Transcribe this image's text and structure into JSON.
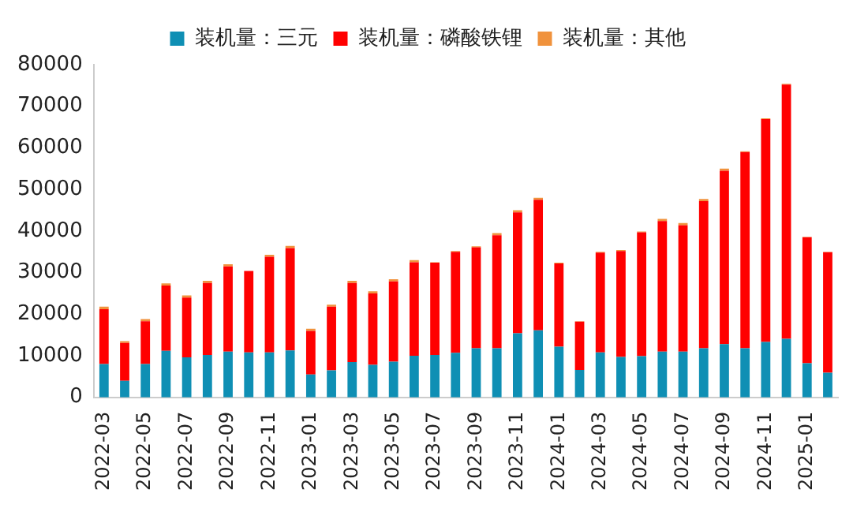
{
  "chart_data": {
    "type": "bar",
    "stacked": true,
    "legend": "top",
    "grid": false,
    "categories": [
      "2022-03",
      null,
      "2022-05",
      null,
      "2022-07",
      null,
      "2022-09",
      null,
      "2022-11",
      null,
      "2023-01",
      null,
      "2023-03",
      null,
      "2023-05",
      null,
      "2023-07",
      null,
      "2023-09",
      null,
      "2023-11",
      null,
      "2024-01",
      null,
      "2024-03",
      null,
      "2024-05",
      null,
      "2024-07",
      null,
      "2024-09",
      null,
      "2024-11",
      null,
      "2025-01",
      null
    ],
    "ylim": [
      0,
      80000
    ],
    "yticks": [
      0,
      10000,
      20000,
      30000,
      40000,
      50000,
      60000,
      70000,
      80000
    ],
    "series": [
      {
        "name": "装机量：三元",
        "color": "#0f8fb4",
        "values": [
          8000,
          4000,
          8000,
          11200,
          9600,
          10200,
          11000,
          10800,
          10800,
          11300,
          5500,
          6500,
          8500,
          7800,
          8600,
          10000,
          10200,
          10700,
          11800,
          11800,
          15400,
          16100,
          12200,
          6600,
          10800,
          9700,
          9900,
          11000,
          11000,
          11800,
          12800,
          11800,
          13300,
          14100,
          8200,
          5900
        ]
      },
      {
        "name": "装机量：磷酸铁锂",
        "color": "#ff0000",
        "values": [
          13200,
          9100,
          10300,
          15700,
          14400,
          17300,
          20500,
          19600,
          23000,
          24600,
          10500,
          15300,
          19000,
          17200,
          19300,
          22500,
          22200,
          24300,
          24300,
          27200,
          29100,
          31400,
          20000,
          11600,
          24000,
          25500,
          29800,
          31400,
          30400,
          35400,
          41700,
          47200,
          53600,
          61100,
          30300,
          29000
        ]
      },
      {
        "name": "装机量：其他",
        "color": "#f0923c",
        "values": [
          600,
          400,
          500,
          500,
          500,
          500,
          500,
          null,
          500,
          500,
          500,
          500,
          500,
          500,
          500,
          500,
          100,
          200,
          200,
          500,
          500,
          500,
          200,
          100,
          200,
          200,
          200,
          500,
          500,
          500,
          500,
          200,
          200,
          200,
          100,
          100
        ]
      }
    ]
  }
}
